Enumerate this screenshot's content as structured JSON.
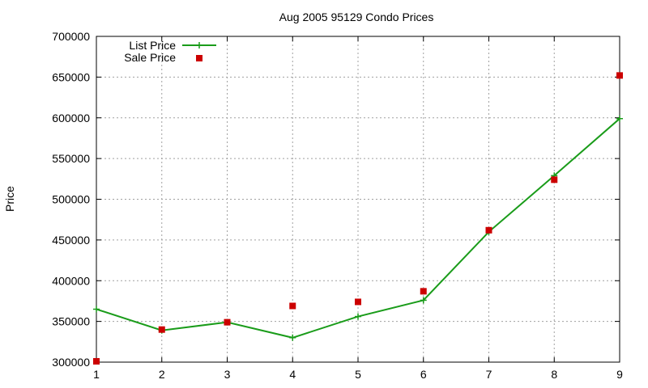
{
  "chart_data": {
    "type": "line",
    "title": "Aug 2005 95129 Condo Prices",
    "xlabel": "",
    "ylabel": "Price",
    "xlim": [
      1,
      9
    ],
    "ylim": [
      300000,
      700000
    ],
    "x_ticks": [
      1,
      2,
      3,
      4,
      5,
      6,
      7,
      8,
      9
    ],
    "y_ticks": [
      300000,
      350000,
      400000,
      450000,
      500000,
      550000,
      600000,
      650000,
      700000
    ],
    "grid": true,
    "legend_position": "top-left",
    "series": [
      {
        "name": "List Price",
        "style": "line-with-plus-markers",
        "color": "#1a9c1a",
        "x": [
          1,
          2,
          3,
          4,
          5,
          6,
          7,
          8,
          9
        ],
        "y": [
          365000,
          339000,
          349000,
          330000,
          356000,
          376000,
          460000,
          529000,
          599000
        ]
      },
      {
        "name": "Sale Price",
        "style": "square-markers",
        "color": "#cc0000",
        "x": [
          1,
          2,
          3,
          4,
          5,
          6,
          7,
          8,
          9
        ],
        "y": [
          301000,
          340000,
          349000,
          369000,
          374000,
          387000,
          462000,
          524000,
          652000
        ]
      }
    ]
  }
}
